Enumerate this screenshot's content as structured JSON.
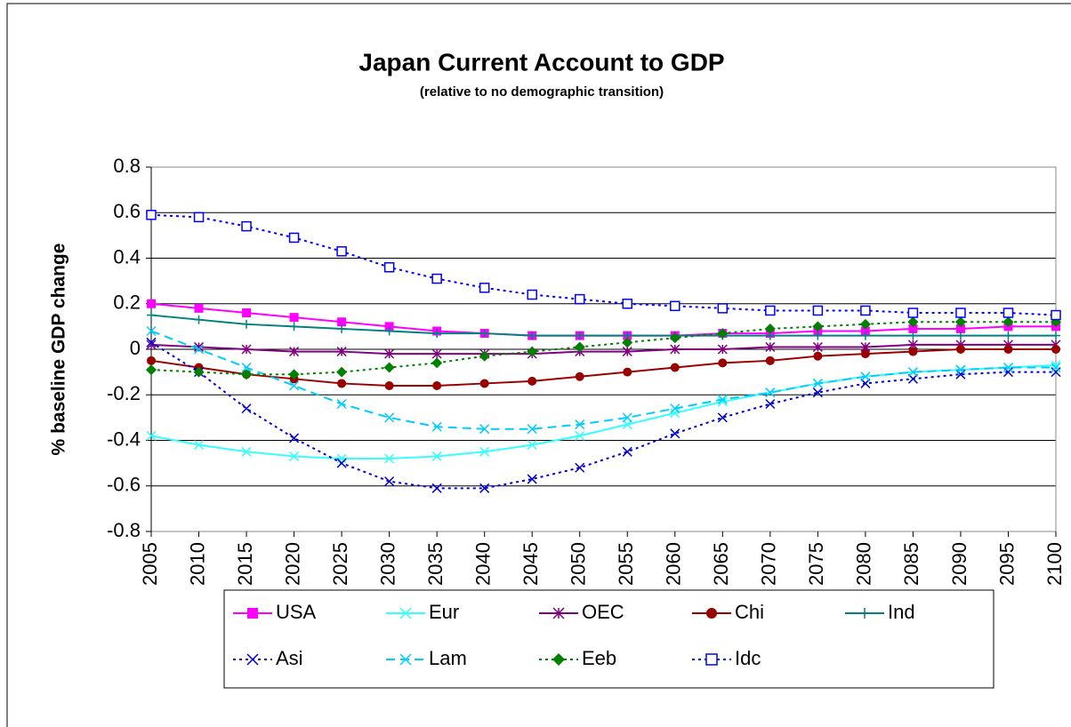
{
  "chart_data": {
    "type": "line",
    "title": "Japan Current Account to GDP",
    "subtitle": "(relative to no demographic transition)",
    "y_label": "% baseline GDP change",
    "x": [
      2005,
      2010,
      2015,
      2020,
      2025,
      2030,
      2035,
      2040,
      2045,
      2050,
      2055,
      2060,
      2065,
      2070,
      2075,
      2080,
      2085,
      2090,
      2095,
      2100
    ],
    "xlim": [
      2005,
      2100
    ],
    "xticks": [
      2005,
      2010,
      2015,
      2020,
      2025,
      2030,
      2035,
      2040,
      2045,
      2050,
      2055,
      2060,
      2065,
      2070,
      2075,
      2080,
      2085,
      2090,
      2095,
      2100
    ],
    "ylim": [
      -0.8,
      0.8
    ],
    "yticks": [
      -0.8,
      -0.6,
      -0.4,
      -0.2,
      0,
      0.2,
      0.4,
      0.6,
      0.8
    ],
    "grid": true,
    "legend": "bottom",
    "series": [
      {
        "name": "USA",
        "color": "#ff00ff",
        "dash": "solid",
        "marker": "square",
        "values": [
          0.2,
          0.18,
          0.16,
          0.14,
          0.12,
          0.1,
          0.08,
          0.07,
          0.06,
          0.06,
          0.06,
          0.06,
          0.07,
          0.07,
          0.08,
          0.08,
          0.09,
          0.09,
          0.1,
          0.1
        ]
      },
      {
        "name": "Eur",
        "color": "#33ffff",
        "dash": "solid",
        "marker": "x",
        "values": [
          -0.38,
          -0.42,
          -0.45,
          -0.47,
          -0.48,
          -0.48,
          -0.47,
          -0.45,
          -0.42,
          -0.38,
          -0.33,
          -0.28,
          -0.23,
          -0.19,
          -0.15,
          -0.12,
          -0.1,
          -0.09,
          -0.08,
          -0.07
        ]
      },
      {
        "name": "OEC",
        "color": "#800080",
        "dash": "solid",
        "marker": "star",
        "values": [
          0.02,
          0.01,
          0,
          -0.01,
          -0.01,
          -0.02,
          -0.02,
          -0.02,
          -0.02,
          -0.01,
          -0.01,
          0,
          0,
          0.01,
          0.01,
          0.01,
          0.02,
          0.02,
          0.02,
          0.02
        ]
      },
      {
        "name": "Chi",
        "color": "#990000",
        "dash": "solid",
        "marker": "circle",
        "values": [
          -0.05,
          -0.08,
          -0.11,
          -0.13,
          -0.15,
          -0.16,
          -0.16,
          -0.15,
          -0.14,
          -0.12,
          -0.1,
          -0.08,
          -0.06,
          -0.05,
          -0.03,
          -0.02,
          -0.01,
          0,
          0,
          0
        ]
      },
      {
        "name": "Ind",
        "color": "#008080",
        "dash": "solid",
        "marker": "plus",
        "values": [
          0.15,
          0.13,
          0.11,
          0.1,
          0.09,
          0.08,
          0.07,
          0.07,
          0.06,
          0.06,
          0.06,
          0.06,
          0.06,
          0.06,
          0.06,
          0.06,
          0.06,
          0.06,
          0.06,
          0.06
        ]
      },
      {
        "name": "Asi",
        "color": "#0000cc",
        "dash": "dotted",
        "marker": "x",
        "values": [
          0.03,
          -0.1,
          -0.26,
          -0.39,
          -0.5,
          -0.58,
          -0.61,
          -0.61,
          -0.57,
          -0.52,
          -0.45,
          -0.37,
          -0.3,
          -0.24,
          -0.19,
          -0.15,
          -0.13,
          -0.11,
          -0.1,
          -0.1
        ]
      },
      {
        "name": "Lam",
        "color": "#00ccff",
        "dash": "dashed",
        "marker": "x",
        "values": [
          0.08,
          0,
          -0.08,
          -0.16,
          -0.24,
          -0.3,
          -0.34,
          -0.35,
          -0.35,
          -0.33,
          -0.3,
          -0.26,
          -0.22,
          -0.19,
          -0.15,
          -0.12,
          -0.1,
          -0.09,
          -0.08,
          -0.08
        ]
      },
      {
        "name": "Eeb",
        "color": "#008000",
        "dash": "dotted",
        "marker": "diamond",
        "values": [
          -0.09,
          -0.1,
          -0.11,
          -0.11,
          -0.1,
          -0.08,
          -0.06,
          -0.03,
          -0.01,
          0.01,
          0.03,
          0.05,
          0.07,
          0.09,
          0.1,
          0.11,
          0.12,
          0.12,
          0.12,
          0.12
        ]
      },
      {
        "name": "Idc",
        "color": "#0000ff",
        "dash": "dotted",
        "marker": "square-open",
        "values": [
          0.59,
          0.58,
          0.54,
          0.49,
          0.43,
          0.36,
          0.31,
          0.27,
          0.24,
          0.22,
          0.2,
          0.19,
          0.18,
          0.17,
          0.17,
          0.17,
          0.16,
          0.16,
          0.16,
          0.15
        ]
      }
    ]
  }
}
